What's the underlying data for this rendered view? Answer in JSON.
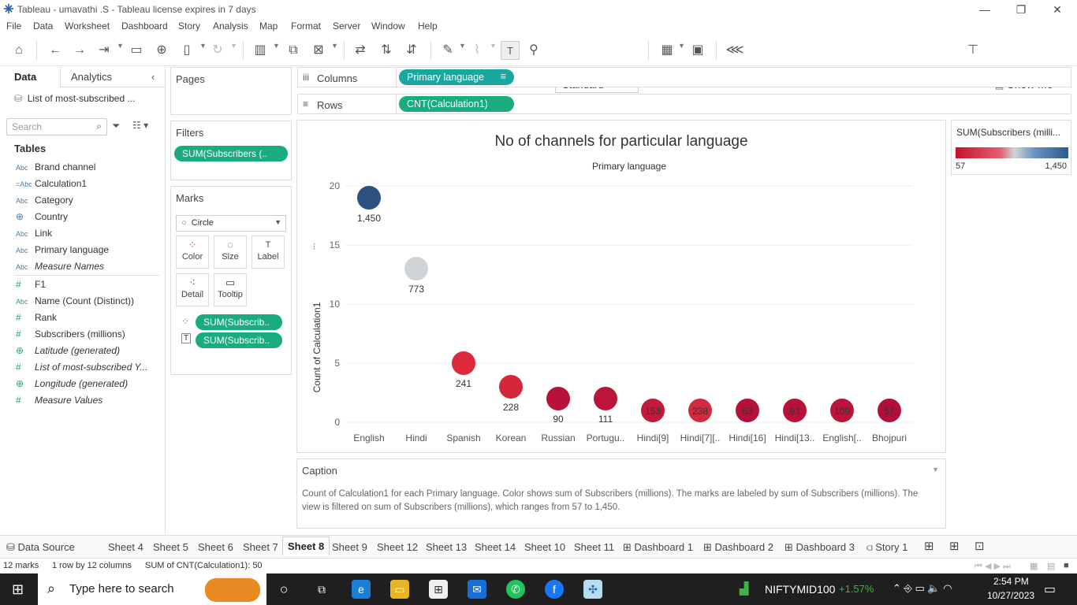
{
  "window": {
    "title": "Tableau - umavathi .S - Tableau license expires in 7 days"
  },
  "menu": [
    "File",
    "Data",
    "Worksheet",
    "Dashboard",
    "Story",
    "Analysis",
    "Map",
    "Format",
    "Server",
    "Window",
    "Help"
  ],
  "toolbar": {
    "fit_select": "Standard",
    "show_me": "Show Me"
  },
  "data_pane": {
    "tab_data": "Data",
    "tab_analytics": "Analytics",
    "source": "List of most-subscribed ...",
    "search_placeholder": "Search",
    "tables_heading": "Tables",
    "dimensions": [
      {
        "type": "Abc",
        "name": "Brand channel"
      },
      {
        "type": "=Abc",
        "name": "Calculation1"
      },
      {
        "type": "Abc",
        "name": "Category"
      },
      {
        "type": "globe",
        "name": "Country"
      },
      {
        "type": "Abc",
        "name": "Link"
      },
      {
        "type": "Abc",
        "name": "Primary language"
      },
      {
        "type": "Abc",
        "name": "Measure Names"
      }
    ],
    "measures": [
      {
        "type": "#",
        "name": "F1"
      },
      {
        "type": "Abc",
        "name": "Name (Count (Distinct))"
      },
      {
        "type": "#",
        "name": "Rank"
      },
      {
        "type": "#",
        "name": "Subscribers (millions)"
      },
      {
        "type": "globe",
        "name": "Latitude (generated)"
      },
      {
        "type": "#",
        "name": "List of most-subscribed Y..."
      },
      {
        "type": "globe",
        "name": "Longitude (generated)"
      },
      {
        "type": "#",
        "name": "Measure Values"
      }
    ]
  },
  "pages": {
    "title": "Pages"
  },
  "filters": {
    "title": "Filters",
    "pill": "SUM(Subscribers (.."
  },
  "marks": {
    "title": "Marks",
    "type": "Circle",
    "buttons": [
      "Color",
      "Size",
      "Label",
      "Detail",
      "Tooltip"
    ],
    "pill_color": "SUM(Subscrib..",
    "pill_label": "SUM(Subscrib.."
  },
  "columns": {
    "label": "Columns",
    "pill": "Primary language"
  },
  "rows": {
    "label": "Rows",
    "pill": "CNT(Calculation1)"
  },
  "legend": {
    "title": "SUM(Subscribers (milli...",
    "min": "57",
    "max": "1,450"
  },
  "chart_data": {
    "type": "scatter",
    "title": "No of channels for particular language",
    "x_header": "Primary language",
    "ylabel": "Count of Calculation1",
    "ylim": [
      0,
      20
    ],
    "yticks": [
      0,
      5,
      10,
      15,
      20
    ],
    "categories": [
      "English",
      "Hindi",
      "Spanish",
      "Korean",
      "Russian",
      "Portugu..",
      "Hindi[9]",
      "Hindi[7][..",
      "Hindi[16]",
      "Hindi[13..",
      "English[..",
      "Bhojpuri"
    ],
    "values": [
      19,
      13,
      5,
      3,
      2,
      2,
      1,
      1,
      1,
      1,
      1,
      1
    ],
    "labels": [
      "1,450",
      "773",
      "241",
      "228",
      "90",
      "111",
      "153",
      "238",
      "63",
      "93",
      "109",
      "57"
    ],
    "colors": [
      "#2c5282",
      "#cfd3d8",
      "#dc2a3a",
      "#d3283c",
      "#b8123a",
      "#bc153a",
      "#c21a3a",
      "#d22a3e",
      "#b5103a",
      "#b8123a",
      "#bb143a",
      "#b20e3a"
    ]
  },
  "caption": {
    "title": "Caption",
    "text": "Count of Calculation1 for each Primary language.  Color shows sum of Subscribers (millions).  The marks are labeled by sum of Subscribers (millions). The view is filtered on sum of Subscribers (millions), which ranges from 57 to 1,450."
  },
  "sheet_tabs": [
    "Data Source",
    "Sheet 4",
    "Sheet 5",
    "Sheet 6",
    "Sheet 7",
    "Sheet 8",
    "Sheet 9",
    "Sheet 12",
    "Sheet 13",
    "Sheet 14",
    "Sheet 10",
    "Sheet 11",
    "Dashboard 1",
    "Dashboard 2",
    "Dashboard 3",
    "Story 1"
  ],
  "status": {
    "marks": "12 marks",
    "dims": "1 row by 12 columns",
    "sum": "SUM of CNT(Calculation1): 50"
  },
  "taskbar": {
    "search": "Type here to search",
    "ticker": "NIFTYMID100",
    "change": "+1.57%",
    "time": "2:54 PM",
    "date": "10/27/2023"
  }
}
